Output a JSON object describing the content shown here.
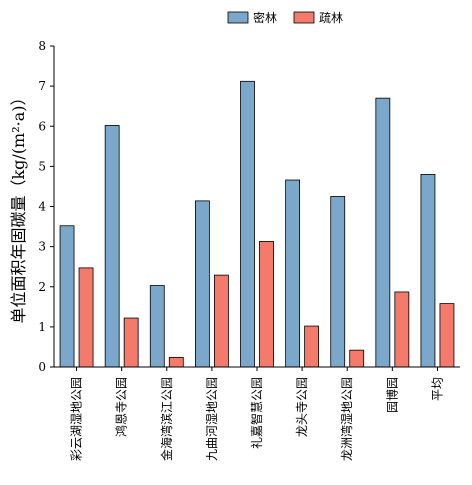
{
  "chart_data": {
    "type": "bar",
    "title": "",
    "xlabel": "",
    "ylabel": "单位面积年固碳量（kg/(m²·a)）",
    "ylim": [
      0,
      8
    ],
    "yticks": [
      0,
      1,
      2,
      3,
      4,
      5,
      6,
      7,
      8
    ],
    "grid": false,
    "legend_position": "top-right",
    "categories": [
      "彩云湖湿地公园",
      "鸿恩寺公园",
      "金海湾滨江公园",
      "九曲河湿地公园",
      "礼嘉智慧公园",
      "龙头寺公园",
      "龙洲湾湿地公园",
      "园博园",
      "平均"
    ],
    "series": [
      {
        "name": "密林",
        "color": "#7ba7cb",
        "values": [
          3.52,
          6.02,
          2.03,
          4.14,
          7.12,
          4.66,
          4.25,
          6.7,
          4.8
        ]
      },
      {
        "name": "疏林",
        "color": "#f47a6b",
        "values": [
          2.47,
          1.22,
          0.24,
          2.29,
          3.13,
          1.02,
          0.42,
          1.87,
          1.58
        ]
      }
    ]
  }
}
